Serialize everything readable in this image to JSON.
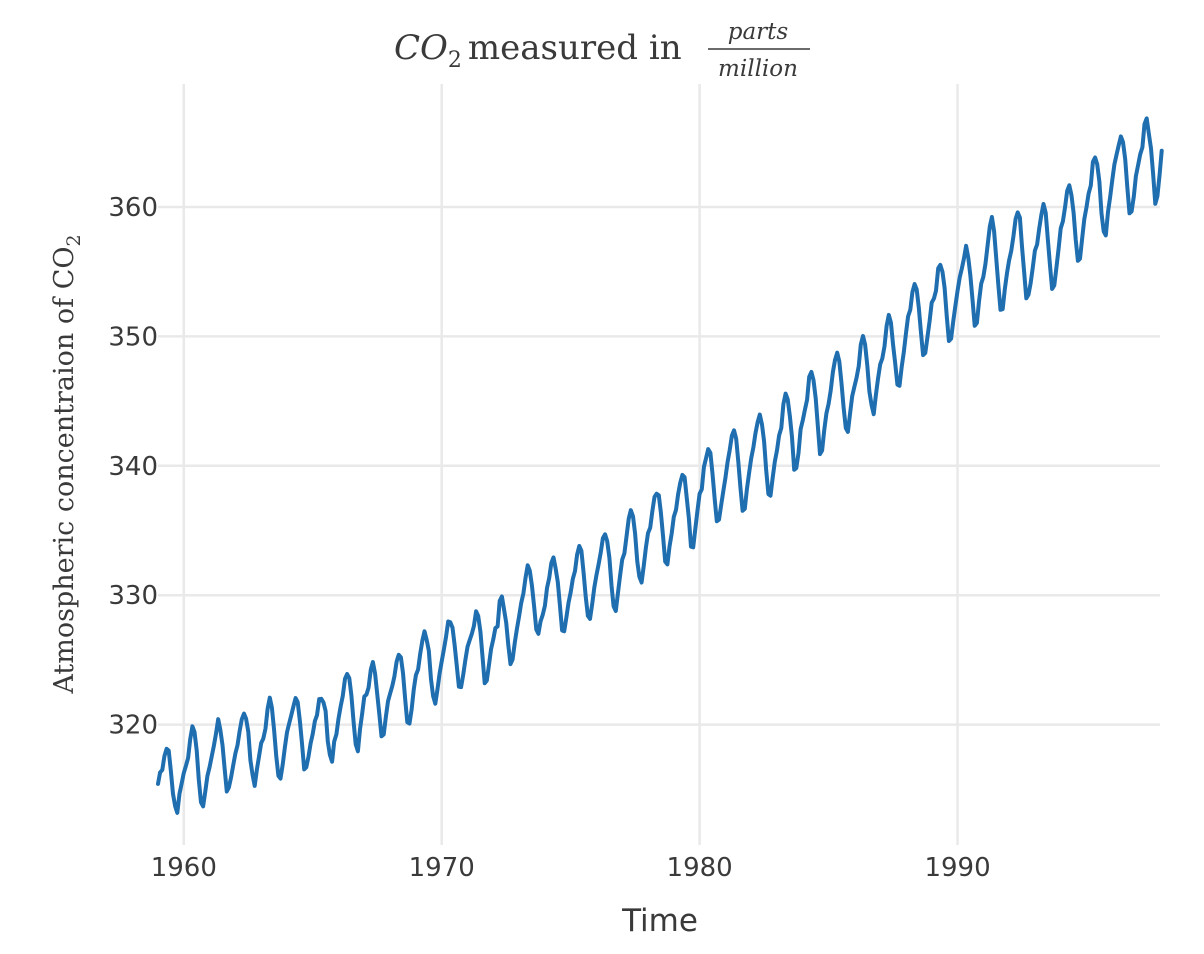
{
  "chart_data": {
    "type": "line",
    "title": {
      "variable": "CO",
      "variable_subscript": "2",
      "text": "measured in",
      "numerator": "parts",
      "denominator": "million"
    },
    "xlabel": "Time",
    "ylabel": {
      "text": "Atmospheric concentraion of CO",
      "subscript": "2"
    },
    "xlim": [
      1959.0,
      1997.85
    ],
    "ylim": [
      310.7,
      369.5
    ],
    "xticks": [
      1960,
      1970,
      1980,
      1990
    ],
    "yticks": [
      320,
      330,
      340,
      350,
      360
    ],
    "grid": true,
    "series": [
      {
        "color": "#1f6eb0",
        "x_start": 1959.0,
        "x_step": 0.0833333,
        "values": [
          315.42,
          316.31,
          316.5,
          317.56,
          318.13,
          318.0,
          316.39,
          314.65,
          313.68,
          313.18,
          314.66,
          315.43,
          316.27,
          316.81,
          317.42,
          318.87,
          319.87,
          319.43,
          318.01,
          315.74,
          314.0,
          313.68,
          314.84,
          316.03,
          316.73,
          317.54,
          318.38,
          319.31,
          320.42,
          319.61,
          318.42,
          316.63,
          314.83,
          315.16,
          315.94,
          316.85,
          317.78,
          318.4,
          319.53,
          320.42,
          320.85,
          320.45,
          319.45,
          317.25,
          316.11,
          315.27,
          316.53,
          317.53,
          318.58,
          318.92,
          319.7,
          321.22,
          322.08,
          321.31,
          319.58,
          317.61,
          316.05,
          315.83,
          316.91,
          318.2,
          319.41,
          320.07,
          320.74,
          321.4,
          322.06,
          321.73,
          320.27,
          318.54,
          316.54,
          316.71,
          317.53,
          318.55,
          319.27,
          320.28,
          320.73,
          321.97,
          322.0,
          321.71,
          321.05,
          318.71,
          317.66,
          317.14,
          318.7,
          319.25,
          320.46,
          321.43,
          322.23,
          323.54,
          323.91,
          323.59,
          322.24,
          320.2,
          318.48,
          317.94,
          319.63,
          320.87,
          322.17,
          322.34,
          322.88,
          324.25,
          324.83,
          323.93,
          322.38,
          320.76,
          319.1,
          319.24,
          320.56,
          321.8,
          322.4,
          322.99,
          323.73,
          324.86,
          325.4,
          325.2,
          323.98,
          321.95,
          320.18,
          320.09,
          321.16,
          322.74,
          323.83,
          324.26,
          325.47,
          326.5,
          327.21,
          326.54,
          325.72,
          323.5,
          322.22,
          321.62,
          322.69,
          323.95,
          324.89,
          325.82,
          326.77,
          327.97,
          327.91,
          327.5,
          326.18,
          324.53,
          322.93,
          322.9,
          323.85,
          324.96,
          326.01,
          326.51,
          327.01,
          327.62,
          328.76,
          328.4,
          327.2,
          325.27,
          323.2,
          323.4,
          324.63,
          325.85,
          326.6,
          327.47,
          327.58,
          329.56,
          329.9,
          328.92,
          327.88,
          326.16,
          324.68,
          325.04,
          326.34,
          327.39,
          328.37,
          329.4,
          330.14,
          331.33,
          332.31,
          331.9,
          330.7,
          329.15,
          327.35,
          327.02,
          327.99,
          328.48,
          329.18,
          330.55,
          331.32,
          332.48,
          332.92,
          332.08,
          331.01,
          329.23,
          327.27,
          327.21,
          328.29,
          329.41,
          330.23,
          331.25,
          331.87,
          333.14,
          333.8,
          333.43,
          331.73,
          329.9,
          328.4,
          328.17,
          329.32,
          330.59,
          331.58,
          332.39,
          333.33,
          334.41,
          334.71,
          334.17,
          332.89,
          330.77,
          329.14,
          328.78,
          330.14,
          331.52,
          332.75,
          333.24,
          334.53,
          335.9,
          336.57,
          336.1,
          334.76,
          332.59,
          331.42,
          330.98,
          332.24,
          333.68,
          334.8,
          335.22,
          336.47,
          337.59,
          337.84,
          337.72,
          336.37,
          334.51,
          332.6,
          332.38,
          333.75,
          334.78,
          336.05,
          336.59,
          337.79,
          338.71,
          339.3,
          339.12,
          337.56,
          335.92,
          333.75,
          333.7,
          335.12,
          336.56,
          337.84,
          338.19,
          339.91,
          340.6,
          341.29,
          341.0,
          339.39,
          337.43,
          335.72,
          335.84,
          336.93,
          338.04,
          339.06,
          340.3,
          341.21,
          342.33,
          342.74,
          342.08,
          340.32,
          338.26,
          336.52,
          336.68,
          338.19,
          339.44,
          340.57,
          341.44,
          342.53,
          343.39,
          343.96,
          343.18,
          341.88,
          339.65,
          337.81,
          337.69,
          339.09,
          340.32,
          341.2,
          342.35,
          342.93,
          344.77,
          345.58,
          345.14,
          343.81,
          342.21,
          339.69,
          339.82,
          340.98,
          342.82,
          343.52,
          344.33,
          345.11,
          346.88,
          347.25,
          346.62,
          345.22,
          343.11,
          340.9,
          341.18,
          342.8,
          344.04,
          344.79,
          345.82,
          347.25,
          348.17,
          348.74,
          348.07,
          346.38,
          344.51,
          342.92,
          342.62,
          344.06,
          345.38,
          346.11,
          346.78,
          347.68,
          349.37,
          350.03,
          349.37,
          347.76,
          345.73,
          344.68,
          343.99,
          345.48,
          346.72,
          347.84,
          348.29,
          349.23,
          350.8,
          351.66,
          351.07,
          349.33,
          347.92,
          346.27,
          346.18,
          347.64,
          348.78,
          350.25,
          351.54,
          352.05,
          353.41,
          354.04,
          353.62,
          352.22,
          350.27,
          348.55,
          348.72,
          349.91,
          351.18,
          352.6,
          352.92,
          353.53,
          355.26,
          355.52,
          354.97,
          353.75,
          351.52,
          349.64,
          349.83,
          351.14,
          352.37,
          353.5,
          354.55,
          355.23,
          356.04,
          357.0,
          356.07,
          354.67,
          352.76,
          350.82,
          351.04,
          352.69,
          354.07,
          354.59,
          355.63,
          357.03,
          358.48,
          359.22,
          358.12,
          356.06,
          353.92,
          352.05,
          352.11,
          353.64,
          354.89,
          355.88,
          356.63,
          357.72,
          359.07,
          359.58,
          359.17,
          356.94,
          354.92,
          352.94,
          353.23,
          354.09,
          355.33,
          356.63,
          357.1,
          358.32,
          359.41,
          360.23,
          359.55,
          357.53,
          355.48,
          353.67,
          353.95,
          355.3,
          356.78,
          358.34,
          358.89,
          359.95,
          361.25,
          361.67,
          360.94,
          359.55,
          357.49,
          355.84,
          356.0,
          357.59,
          359.05,
          359.98,
          361.03,
          361.66,
          363.48,
          363.82,
          363.3,
          361.94,
          359.5,
          358.11,
          357.8,
          359.61,
          360.74,
          362.09,
          363.29,
          364.06,
          364.76,
          365.45,
          365.01,
          363.7,
          361.54,
          359.51,
          359.65,
          360.8,
          362.38,
          363.23,
          364.06,
          364.61,
          366.4,
          366.84,
          365.68,
          364.52,
          362.57,
          360.24,
          360.83,
          362.49,
          364.34
        ]
      }
    ]
  }
}
